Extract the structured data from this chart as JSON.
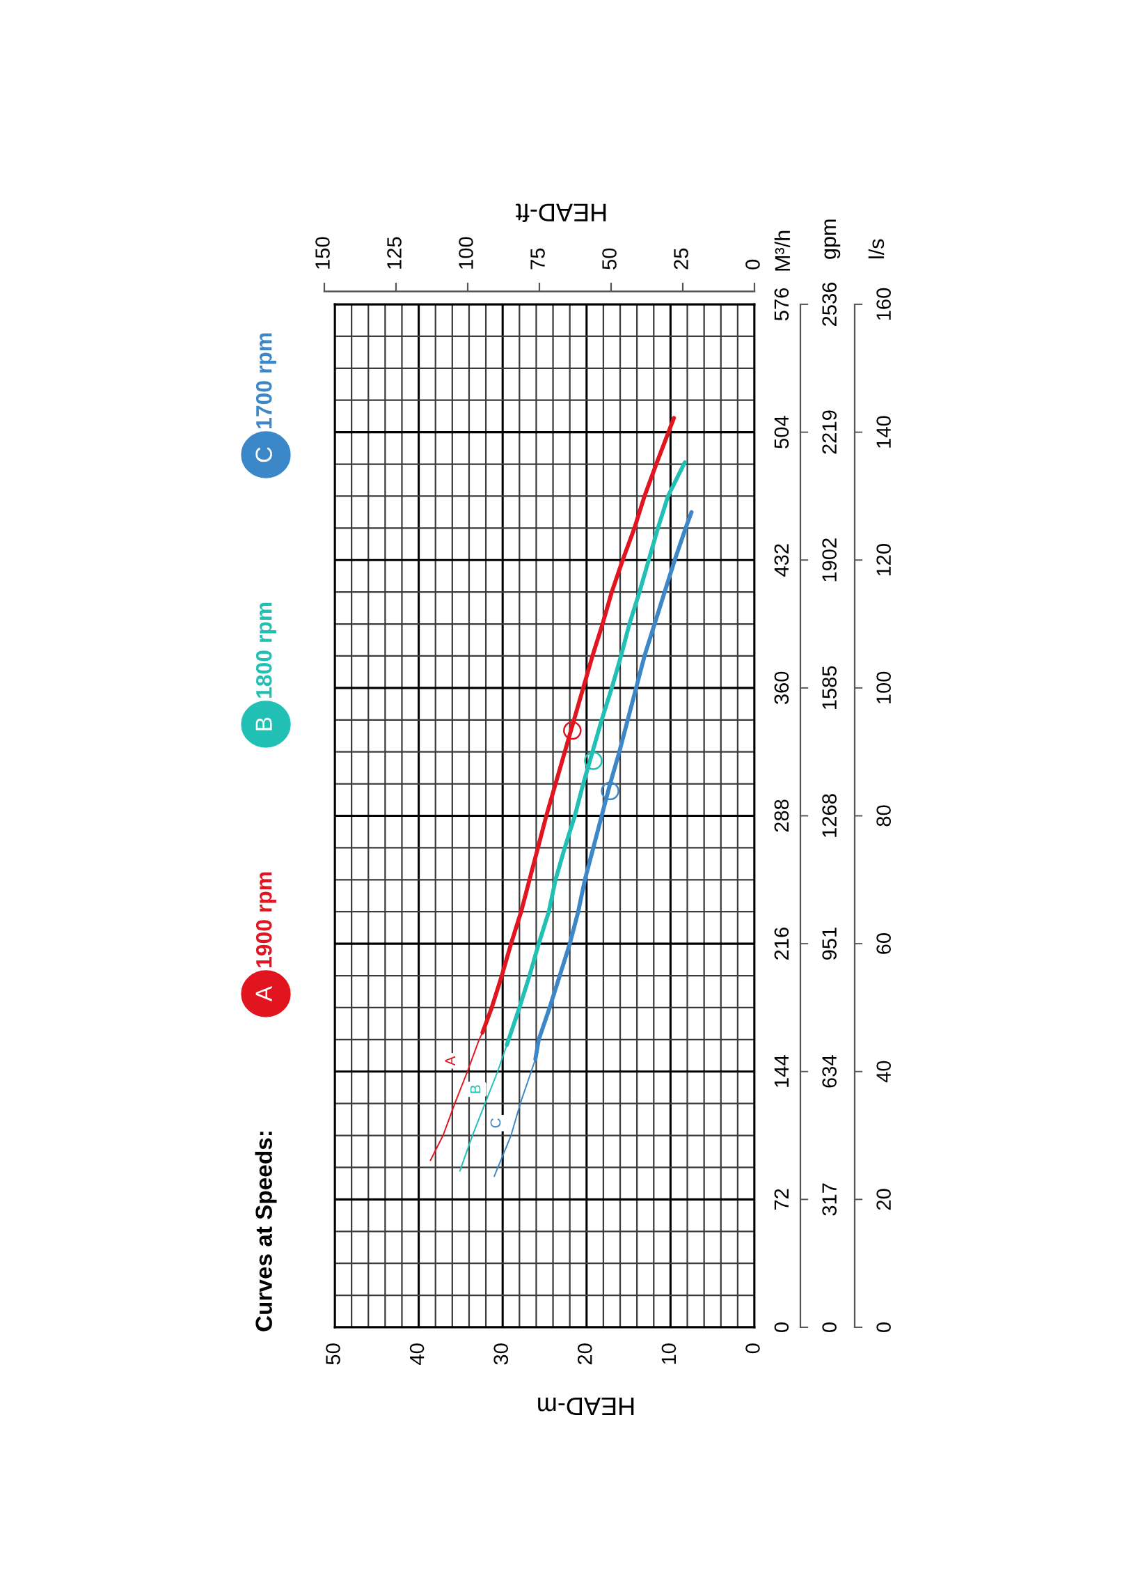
{
  "chart_data": {
    "type": "line",
    "legend_title": "Curves at Speeds:",
    "legend": "left",
    "grid": true,
    "xlabel": "HEAD-m",
    "x2label": "HEAD-ft",
    "ylabel": "M³/h",
    "y2label": "gpm",
    "y3label": "l/s",
    "xlim": [
      50,
      0
    ],
    "xticks": [
      0,
      {
        "value": 2,
        "label": null
      },
      {
        "value": 4,
        "label": null
      },
      {
        "value": 6,
        "label": null
      },
      {
        "value": 8,
        "label": null
      },
      10,
      {
        "value": 12,
        "label": null
      },
      {
        "value": 14,
        "label": null
      },
      {
        "value": 16,
        "label": null
      },
      {
        "value": 18,
        "label": null
      },
      20,
      {
        "value": 22,
        "label": null
      },
      {
        "value": 24,
        "label": null
      },
      {
        "value": 26,
        "label": null
      },
      {
        "value": 28,
        "label": null
      },
      30,
      {
        "value": 32,
        "label": null
      },
      {
        "value": 34,
        "label": null
      },
      {
        "value": 36,
        "label": null
      },
      {
        "value": 38,
        "label": null
      },
      40,
      {
        "value": 42,
        "label": null
      },
      {
        "value": 44,
        "label": null
      },
      {
        "value": 46,
        "label": null
      },
      {
        "value": 48,
        "label": null
      },
      50
    ],
    "x2lim": [
      150,
      0
    ],
    "x2ticks": [
      0,
      25,
      50,
      75,
      100,
      125,
      150
    ],
    "ylim": [
      0,
      576
    ],
    "yticks": [
      0,
      {
        "value": 18,
        "label": null
      },
      {
        "value": 36,
        "label": null
      },
      {
        "value": 54,
        "label": null
      },
      72,
      {
        "value": 90,
        "label": null
      },
      {
        "value": 108,
        "label": null
      },
      {
        "value": 126,
        "label": null
      },
      144,
      {
        "value": 162,
        "label": null
      },
      {
        "value": 180,
        "label": null
      },
      {
        "value": 198,
        "label": null
      },
      216,
      {
        "value": 234,
        "label": null
      },
      {
        "value": 252,
        "label": null
      },
      {
        "value": 270,
        "label": null
      },
      288,
      {
        "value": 306,
        "label": null
      },
      {
        "value": 324,
        "label": null
      },
      {
        "value": 342,
        "label": null
      },
      360,
      {
        "value": 378,
        "label": null
      },
      {
        "value": 396,
        "label": null
      },
      {
        "value": 414,
        "label": null
      },
      432,
      {
        "value": 450,
        "label": null
      },
      {
        "value": 468,
        "label": null
      },
      {
        "value": 486,
        "label": null
      },
      504,
      {
        "value": 522,
        "label": null
      },
      {
        "value": 540,
        "label": null
      },
      {
        "value": 558,
        "label": null
      },
      576
    ],
    "y2lim": [
      0,
      2536
    ],
    "y2ticks": [
      0,
      317,
      634,
      951,
      1268,
      1585,
      1902,
      2219,
      2536
    ],
    "y3lim": [
      0,
      160
    ],
    "y3ticks": [
      0,
      20,
      40,
      60,
      80,
      100,
      120,
      140,
      160
    ],
    "series": [
      {
        "color": "#e0151f",
        "x": [
          38.6,
          37.1,
          35.7,
          34.2,
          32.8,
          32.4
        ],
        "values": [
          94,
          108,
          126,
          144,
          162,
          166
        ]
      },
      {
        "name": "1900 rpm",
        "color": "#e0151f",
        "x": [
          32.4,
          31.3,
          30.1,
          29.0,
          27.8,
          26.8,
          25.8,
          24.8,
          23.7,
          22.6,
          21.5,
          20.4,
          19.3,
          18.1,
          17.0,
          15.7,
          14.3,
          13.1,
          11.7,
          9.6
        ],
        "values": [
          166,
          180,
          198,
          216,
          234,
          252,
          270,
          288,
          306,
          324,
          342,
          360,
          378,
          396,
          414,
          432,
          450,
          468,
          486,
          512
        ]
      },
      {
        "color": "#22c0b4",
        "x": [
          35.1,
          33.6,
          32.1,
          30.6,
          29.5
        ],
        "values": [
          88,
          108,
          126,
          144,
          159
        ]
      },
      {
        "name": "1800 rpm",
        "color": "#22c0b4",
        "x": [
          29.5,
          28.0,
          26.8,
          25.7,
          24.5,
          23.7,
          22.6,
          21.4,
          20.4,
          19.3,
          18.2,
          17.0,
          15.9,
          14.9,
          13.7,
          12.6,
          11.5,
          10.3,
          8.3
        ],
        "values": [
          159,
          180,
          198,
          216,
          234,
          252,
          270,
          288,
          306,
          324,
          342,
          360,
          378,
          396,
          414,
          432,
          450,
          468,
          487
        ]
      },
      {
        "color": "#3b87c8",
        "x": [
          31.0,
          29.0,
          27.9,
          26.6,
          26.1
        ],
        "values": [
          85,
          108,
          126,
          144,
          151
        ]
      },
      {
        "name": "1700 rpm",
        "color": "#3b87c8",
        "x": [
          26.1,
          25.7,
          24.4,
          23.2,
          22.0,
          21.0,
          20.2,
          19.2,
          18.2,
          17.2,
          16.1,
          15.1,
          14.1,
          13.1,
          11.9,
          10.7,
          9.5,
          8.2,
          7.5
        ],
        "values": [
          151,
          162,
          180,
          198,
          216,
          234,
          252,
          270,
          288,
          306,
          324,
          342,
          360,
          378,
          396,
          414,
          432,
          450,
          459
        ]
      },
      {
        "type": "scatter",
        "marker": "circle",
        "x": [
          21.7,
          19.2,
          17.2
        ],
        "values": [
          336,
          319,
          302
        ],
        "colors": [
          "#e0151f",
          "#22c0b4",
          "#3b87c8"
        ]
      }
    ],
    "annotations": [
      "A",
      "B",
      "C",
      {
        "text": "A",
        "x": 36.1,
        "y": 150
      },
      {
        "text": "B",
        "x": 33.1,
        "y": 134
      },
      {
        "text": "C",
        "x": 30.7,
        "y": 115
      }
    ]
  }
}
